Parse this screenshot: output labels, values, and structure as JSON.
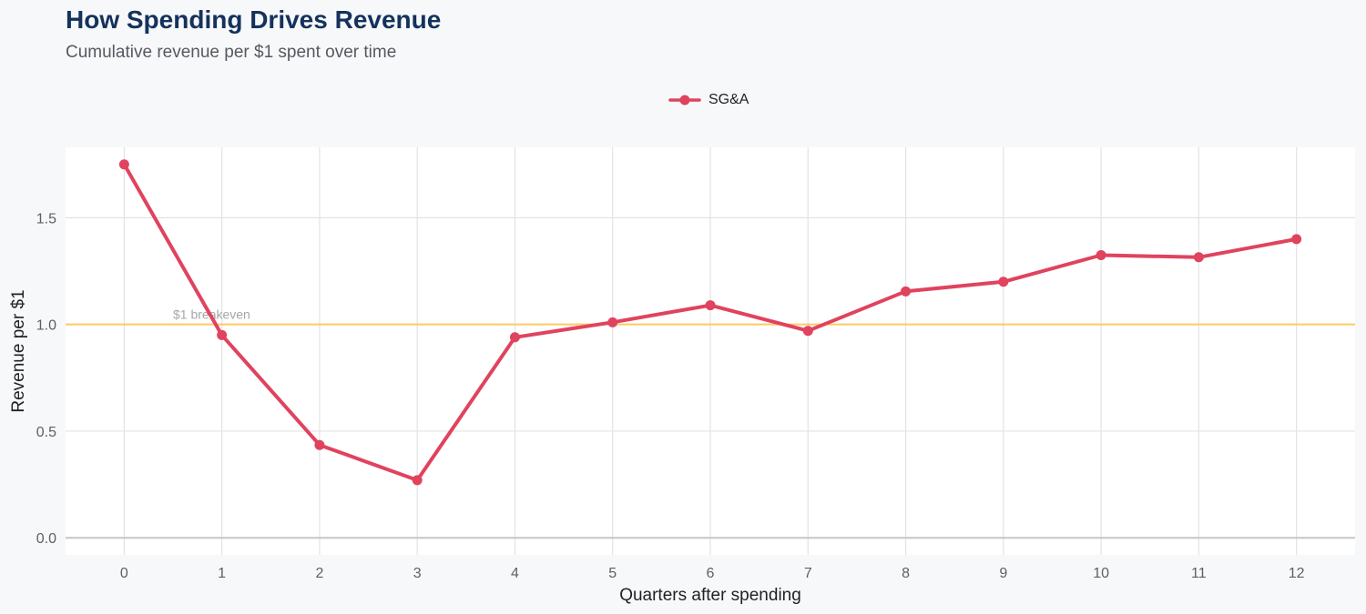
{
  "chart_data": {
    "type": "line",
    "title": "How Spending Drives Revenue",
    "subtitle": "Cumulative revenue per $1 spent over time",
    "xlabel": "Quarters after spending",
    "ylabel": "Revenue per $1",
    "x": [
      0,
      1,
      2,
      3,
      4,
      5,
      6,
      7,
      8,
      9,
      10,
      11,
      12
    ],
    "x_tick_labels": [
      "0",
      "1",
      "2",
      "3",
      "4",
      "5",
      "6",
      "7",
      "8",
      "9",
      "10",
      "11",
      "12"
    ],
    "y_ticks": [
      0.0,
      0.5,
      1.0,
      1.5
    ],
    "y_tick_labels": [
      "0.0",
      "0.5",
      "1.0",
      "1.5"
    ],
    "ylim": [
      -0.08,
      1.83
    ],
    "xlim": [
      -0.6,
      12.6
    ],
    "series": [
      {
        "name": "SG&A",
        "color": "#e0435e",
        "values": [
          1.75,
          0.95,
          0.435,
          0.27,
          0.94,
          1.01,
          1.09,
          0.97,
          1.155,
          1.2,
          1.325,
          1.315,
          1.4
        ]
      }
    ],
    "reference_line": {
      "value": 1.0,
      "label": "$1 breakeven",
      "color": "#ffc960"
    },
    "legend_position": "top-center",
    "grid": true
  }
}
